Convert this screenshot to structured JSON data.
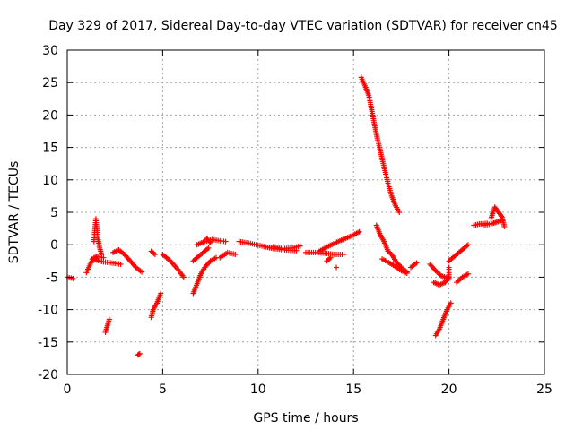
{
  "chart_data": {
    "type": "scatter",
    "title": "Day 329 of 2017, Sidereal Day-to-day VTEC variation (SDTVAR) for receiver cn45",
    "xlabel": "GPS time / hours",
    "ylabel": "SDTVAR / TECUs",
    "xlim": [
      0,
      25
    ],
    "ylim": [
      -20,
      30
    ],
    "x_ticks": [
      0,
      5,
      10,
      15,
      20,
      25
    ],
    "y_ticks": [
      -20,
      -15,
      -10,
      -5,
      0,
      5,
      10,
      15,
      20,
      25,
      30
    ],
    "grid": true,
    "marker": "+",
    "color": "#ff0000",
    "series": [
      {
        "name": "SDTVAR",
        "segments": [
          [
            [
              0.0,
              -5.0
            ],
            [
              0.3,
              -5.2
            ]
          ],
          [
            [
              1.0,
              -4.3
            ],
            [
              1.2,
              -3.0
            ],
            [
              1.4,
              -2.0
            ],
            [
              1.6,
              -1.8
            ],
            [
              1.9,
              -2.0
            ]
          ],
          [
            [
              1.4,
              0.5
            ],
            [
              1.45,
              2.5
            ],
            [
              1.5,
              4.0
            ],
            [
              1.6,
              1.0
            ],
            [
              1.7,
              -0.5
            ],
            [
              1.8,
              -1.5
            ]
          ],
          [
            [
              1.3,
              -2.2
            ],
            [
              1.8,
              -2.6
            ],
            [
              2.3,
              -2.8
            ],
            [
              2.8,
              -3.0
            ]
          ],
          [
            [
              2.0,
              -13.5
            ],
            [
              2.1,
              -12.5
            ],
            [
              2.2,
              -11.5
            ]
          ],
          [
            [
              2.4,
              -1.2
            ],
            [
              2.7,
              -0.8
            ],
            [
              3.0,
              -1.5
            ],
            [
              3.3,
              -2.5
            ],
            [
              3.6,
              -3.5
            ],
            [
              3.9,
              -4.2
            ]
          ],
          [
            [
              3.7,
              -17.0
            ],
            [
              3.8,
              -16.8
            ]
          ],
          [
            [
              4.4,
              -11.2
            ],
            [
              4.5,
              -10.0
            ],
            [
              4.7,
              -9.0
            ],
            [
              4.9,
              -7.5
            ]
          ],
          [
            [
              4.6,
              -1.5
            ],
            [
              4.4,
              -1.0
            ]
          ],
          [
            [
              5.0,
              -1.5
            ],
            [
              5.4,
              -2.5
            ],
            [
              5.8,
              -3.8
            ],
            [
              6.1,
              -5.0
            ]
          ],
          [
            [
              6.6,
              -7.5
            ],
            [
              6.8,
              -6.0
            ],
            [
              7.0,
              -4.5
            ],
            [
              7.2,
              -3.5
            ],
            [
              7.5,
              -2.5
            ],
            [
              7.8,
              -2.0
            ]
          ],
          [
            [
              6.6,
              -2.5
            ],
            [
              7.0,
              -1.5
            ],
            [
              7.4,
              -0.5
            ]
          ],
          [
            [
              6.8,
              0.0
            ],
            [
              7.2,
              0.5
            ],
            [
              7.6,
              0.8
            ],
            [
              8.0,
              0.6
            ],
            [
              8.3,
              0.5
            ]
          ],
          [
            [
              7.3,
              1.0
            ],
            [
              7.5,
              0.3
            ]
          ],
          [
            [
              8.0,
              -2.0
            ],
            [
              8.4,
              -1.2
            ],
            [
              8.8,
              -1.5
            ]
          ],
          [
            [
              9.0,
              0.5
            ],
            [
              9.6,
              0.2
            ],
            [
              10.2,
              -0.2
            ],
            [
              10.8,
              -0.6
            ],
            [
              11.4,
              -0.8
            ],
            [
              12.0,
              -0.9
            ]
          ],
          [
            [
              10.8,
              -0.3
            ],
            [
              11.3,
              -0.6
            ],
            [
              11.8,
              -0.5
            ],
            [
              12.2,
              -0.2
            ]
          ],
          [
            [
              12.5,
              -1.2
            ],
            [
              13.0,
              -1.2
            ],
            [
              13.5,
              -1.3
            ],
            [
              14.0,
              -1.5
            ],
            [
              14.5,
              -1.5
            ]
          ],
          [
            [
              13.2,
              -1.0
            ],
            [
              13.7,
              -0.2
            ],
            [
              14.2,
              0.5
            ],
            [
              14.6,
              1.0
            ],
            [
              15.0,
              1.5
            ],
            [
              15.3,
              2.0
            ]
          ],
          [
            [
              13.6,
              -2.5
            ],
            [
              13.8,
              -2.0
            ]
          ],
          [
            [
              14.1,
              -3.5
            ]
          ],
          [
            [
              15.4,
              25.8
            ],
            [
              15.6,
              24.5
            ],
            [
              15.8,
              23.0
            ],
            [
              16.0,
              20.0
            ],
            [
              16.2,
              17.0
            ],
            [
              16.4,
              14.5
            ],
            [
              16.6,
              12.0
            ],
            [
              16.8,
              9.5
            ],
            [
              17.0,
              7.5
            ],
            [
              17.2,
              6.0
            ],
            [
              17.4,
              5.0
            ]
          ],
          [
            [
              16.2,
              3.0
            ],
            [
              16.4,
              1.5
            ],
            [
              16.6,
              0.5
            ],
            [
              16.8,
              -1.0
            ],
            [
              17.0,
              -1.5
            ],
            [
              17.2,
              -2.5
            ],
            [
              17.5,
              -3.5
            ],
            [
              17.8,
              -4.2
            ]
          ],
          [
            [
              16.5,
              -2.2
            ],
            [
              17.0,
              -3.0
            ],
            [
              17.5,
              -4.0
            ],
            [
              17.8,
              -4.4
            ]
          ],
          [
            [
              18.0,
              -3.5
            ],
            [
              18.3,
              -2.8
            ]
          ],
          [
            [
              19.0,
              -3.0
            ],
            [
              19.3,
              -4.0
            ],
            [
              19.6,
              -4.8
            ],
            [
              20.0,
              -5.2
            ],
            [
              20.0,
              -3.5
            ]
          ],
          [
            [
              19.2,
              -5.8
            ],
            [
              19.5,
              -6.2
            ],
            [
              19.8,
              -5.8
            ],
            [
              20.0,
              -5.0
            ]
          ],
          [
            [
              19.3,
              -14.0
            ],
            [
              19.5,
              -13.0
            ],
            [
              19.7,
              -11.5
            ],
            [
              19.9,
              -10.0
            ],
            [
              20.1,
              -9.0
            ]
          ],
          [
            [
              20.4,
              -5.8
            ],
            [
              20.7,
              -5.0
            ],
            [
              21.0,
              -4.5
            ]
          ],
          [
            [
              20.0,
              -2.5
            ],
            [
              20.4,
              -1.5
            ],
            [
              20.8,
              -0.5
            ],
            [
              21.0,
              0.0
            ]
          ],
          [
            [
              21.3,
              3.0
            ],
            [
              21.6,
              3.2
            ],
            [
              22.0,
              3.3
            ]
          ],
          [
            [
              21.8,
              3.0
            ],
            [
              22.2,
              3.2
            ],
            [
              22.5,
              3.5
            ],
            [
              22.8,
              3.8
            ]
          ],
          [
            [
              22.2,
              4.0
            ],
            [
              22.4,
              5.8
            ],
            [
              22.6,
              5.0
            ],
            [
              22.8,
              4.2
            ],
            [
              22.9,
              2.8
            ]
          ]
        ]
      }
    ]
  }
}
